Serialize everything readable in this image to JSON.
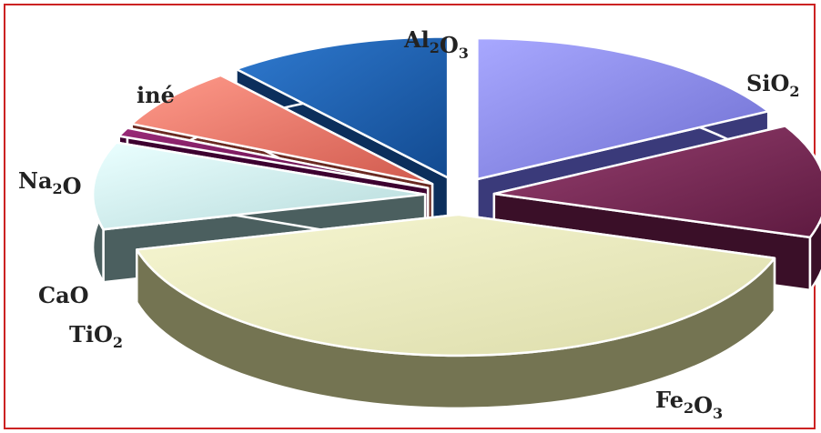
{
  "chart_data": {
    "type": "pie",
    "style": "3d-exploded",
    "title": "",
    "categories": [
      "Al2O3",
      "SiO2",
      "Fe2O3",
      "TiO2",
      "CaO",
      "Na2O",
      "iné"
    ],
    "label_parts": [
      [
        "Al",
        "2",
        "O",
        "3"
      ],
      [
        "SiO",
        "2"
      ],
      [
        "Fe",
        "2",
        "O",
        "3"
      ],
      [
        "TiO",
        "2"
      ],
      [
        "CaO"
      ],
      [
        "Na",
        "2",
        "O"
      ],
      [
        "iné"
      ]
    ],
    "values": [
      17,
      13,
      41,
      10,
      1,
      7,
      11
    ],
    "unit": "%",
    "colors": [
      "#8b8bea",
      "#7a2a55",
      "#eeeebe",
      "#d2f2f2",
      "#7a1a5a",
      "#f07a6a",
      "#1e60b0"
    ],
    "side_colors": [
      "#3a3a7a",
      "#3a0f28",
      "#747452",
      "#4b5f5f",
      "#3d0030",
      "#6a2a22",
      "#0c2f5c"
    ],
    "legend": "none"
  }
}
